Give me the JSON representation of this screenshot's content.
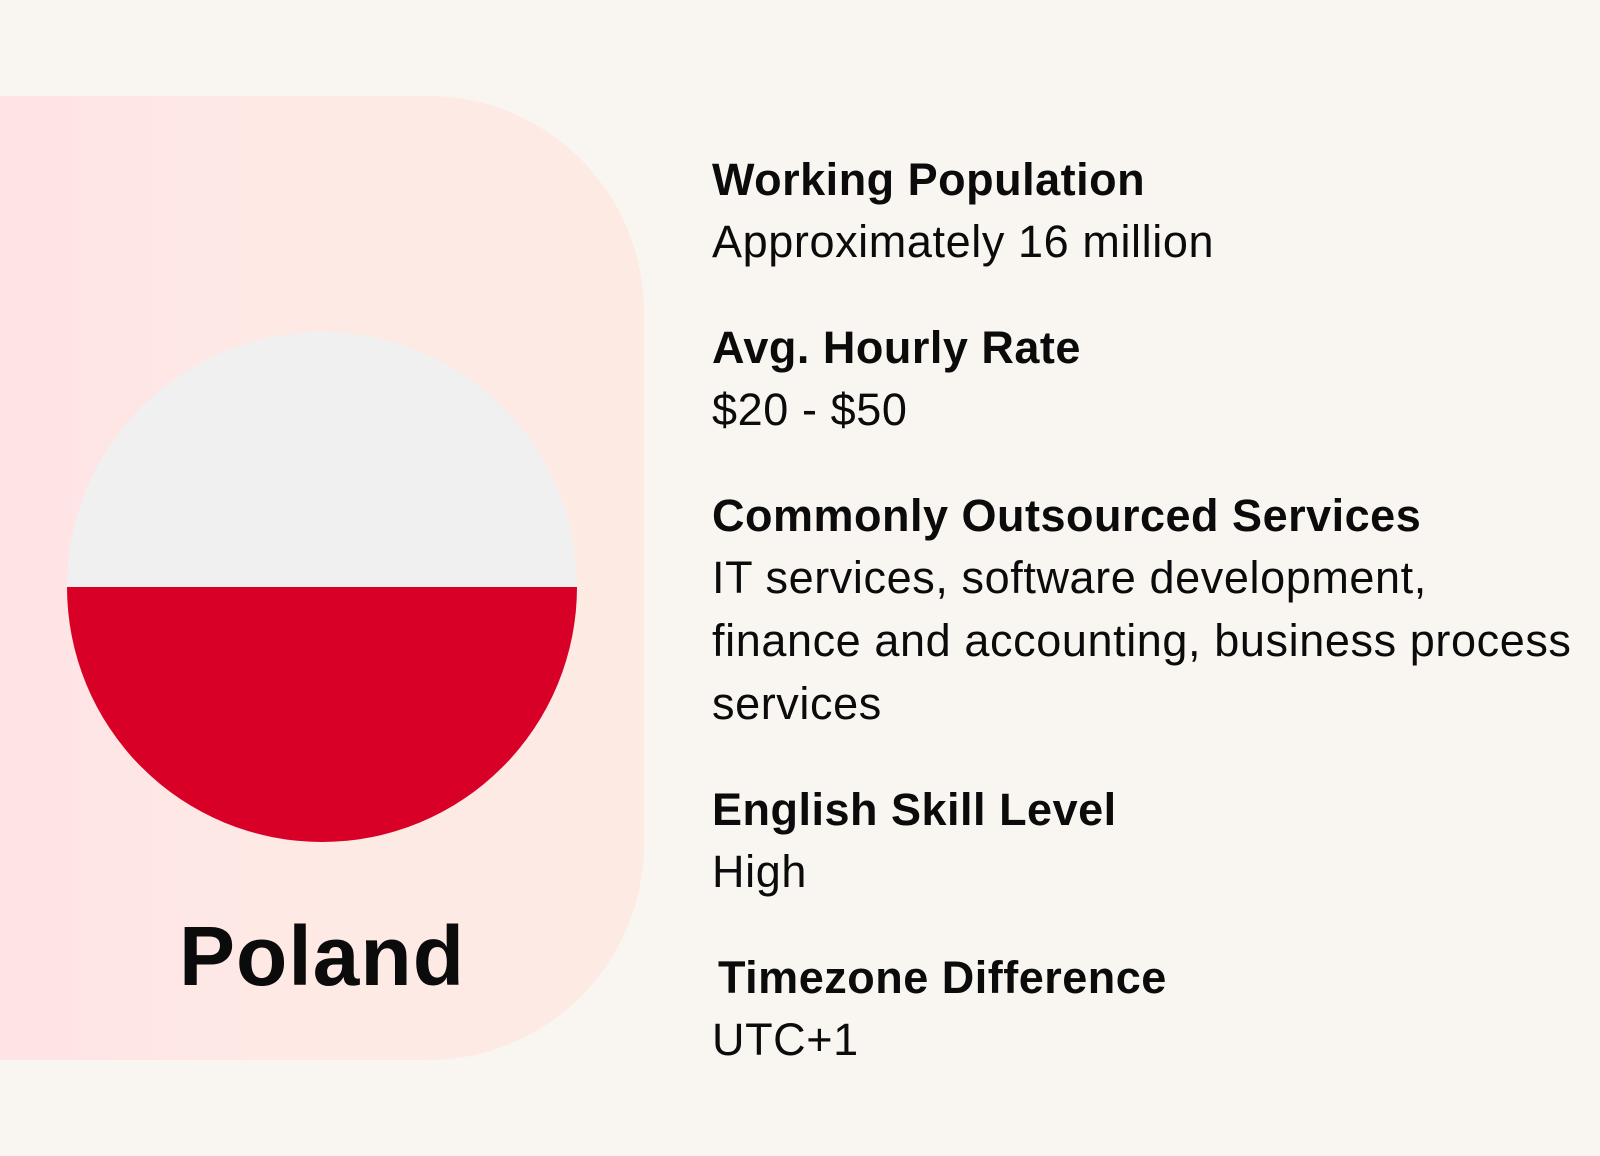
{
  "country": {
    "name": "Poland",
    "flag_colors": {
      "top": "#f0f0f0",
      "bottom": "#d80027"
    }
  },
  "facts": [
    {
      "label": "Working Population",
      "value": "Approximately 16 million"
    },
    {
      "label": "Avg. Hourly Rate",
      "value": "$20 - $50"
    },
    {
      "label": "Commonly Outsourced Services",
      "value": "IT services, software development, finance and accounting, business process services"
    },
    {
      "label": "English Skill Level",
      "value": "High"
    },
    {
      "label": "Timezone Difference",
      "value": "UTC+1"
    }
  ]
}
